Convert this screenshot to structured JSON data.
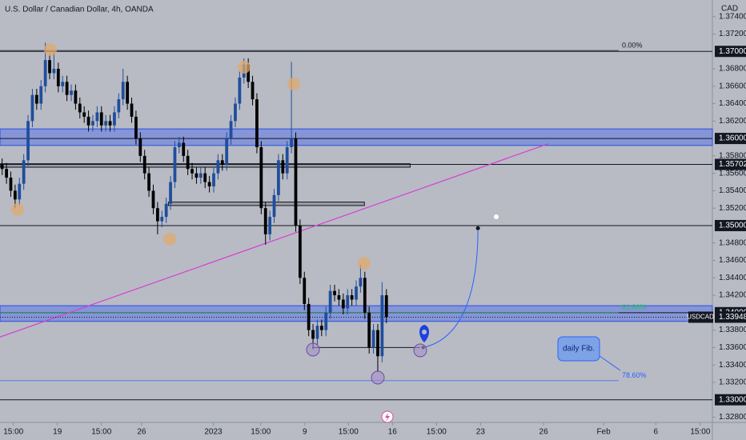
{
  "chart_data": {
    "type": "candlestick",
    "title": "U.S. Dollar / Canadian Dollar, 4h, OANDA",
    "y_axis_label": "CAD",
    "symbol": "USDCAD",
    "up_color": "#1f4e9c",
    "down_color": "#000000",
    "open": [
      1.357,
      1.3565,
      1.3555,
      1.354,
      1.353,
      1.3548,
      1.3575,
      1.362,
      1.365,
      1.364,
      1.366,
      1.369,
      1.3675,
      1.368,
      1.366,
      1.3665,
      1.365,
      1.3655,
      1.364,
      1.363,
      1.3625,
      1.3615,
      1.362,
      1.363,
      1.3615,
      1.362,
      1.3615,
      1.363,
      1.3645,
      1.3665,
      1.364,
      1.3625,
      1.36,
      1.358,
      1.356,
      1.354,
      1.352,
      1.3505,
      1.351,
      1.3525,
      1.355,
      1.359,
      1.3595,
      1.358,
      1.3565,
      1.356,
      1.3555,
      1.356,
      1.355,
      1.3545,
      1.356,
      1.3575,
      1.357,
      1.36,
      1.362,
      1.364,
      1.367,
      1.3685,
      1.3665,
      1.3645,
      1.359,
      1.352,
      1.349,
      1.351,
      1.3535,
      1.3575,
      1.356,
      1.359,
      1.36,
      1.35,
      1.344,
      1.341,
      1.338,
      1.337,
      1.3385,
      1.338,
      1.34,
      1.3425,
      1.342,
      1.3415,
      1.3405,
      1.342,
      1.3415,
      1.343,
      1.344,
      1.34,
      1.336,
      1.338,
      1.335,
      1.342
    ],
    "high": [
      1.3577,
      1.3572,
      1.3562,
      1.3547,
      1.3555,
      1.3582,
      1.3627,
      1.3657,
      1.3657,
      1.3667,
      1.371,
      1.3697,
      1.37,
      1.3687,
      1.3672,
      1.3672,
      1.3662,
      1.3662,
      1.3647,
      1.3637,
      1.3632,
      1.3627,
      1.3637,
      1.3637,
      1.3627,
      1.3627,
      1.3637,
      1.3652,
      1.368,
      1.3672,
      1.3647,
      1.3632,
      1.3607,
      1.3587,
      1.3567,
      1.3547,
      1.3527,
      1.3517,
      1.3532,
      1.3557,
      1.3597,
      1.3602,
      1.3602,
      1.3587,
      1.3572,
      1.3567,
      1.3567,
      1.3567,
      1.3557,
      1.3567,
      1.3582,
      1.3582,
      1.3607,
      1.3627,
      1.3647,
      1.3677,
      1.3692,
      1.3692,
      1.3672,
      1.3652,
      1.3597,
      1.3527,
      1.3517,
      1.3542,
      1.3582,
      1.3582,
      1.3597,
      1.3688,
      1.3607,
      1.3507,
      1.3447,
      1.3417,
      1.3387,
      1.3392,
      1.3392,
      1.3407,
      1.3432,
      1.3432,
      1.3427,
      1.3422,
      1.3427,
      1.3427,
      1.3437,
      1.3455,
      1.3447,
      1.3407,
      1.3387,
      1.3387,
      1.3435,
      1.3427
    ],
    "low": [
      1.3558,
      1.3548,
      1.3533,
      1.352,
      1.3523,
      1.3541,
      1.3568,
      1.3613,
      1.3633,
      1.3633,
      1.3653,
      1.3668,
      1.3668,
      1.3653,
      1.3653,
      1.3643,
      1.3643,
      1.3633,
      1.3623,
      1.3618,
      1.3608,
      1.3608,
      1.3613,
      1.3608,
      1.3608,
      1.3608,
      1.3608,
      1.3623,
      1.3638,
      1.3633,
      1.3618,
      1.3593,
      1.3573,
      1.3553,
      1.3533,
      1.3513,
      1.349,
      1.3498,
      1.3503,
      1.3518,
      1.3543,
      1.3583,
      1.3573,
      1.3558,
      1.3553,
      1.3548,
      1.3548,
      1.3543,
      1.3538,
      1.3538,
      1.3553,
      1.3563,
      1.3563,
      1.3593,
      1.3613,
      1.3633,
      1.3663,
      1.3658,
      1.3638,
      1.3583,
      1.3513,
      1.3478,
      1.3483,
      1.3503,
      1.3528,
      1.3553,
      1.3553,
      1.3583,
      1.3493,
      1.3433,
      1.3403,
      1.3373,
      1.3358,
      1.3363,
      1.3373,
      1.3373,
      1.3393,
      1.3413,
      1.3408,
      1.3398,
      1.3398,
      1.3408,
      1.3408,
      1.3423,
      1.3393,
      1.3353,
      1.3353,
      1.3332,
      1.3343,
      1.3388
    ],
    "close": [
      1.3565,
      1.3555,
      1.354,
      1.353,
      1.3548,
      1.3575,
      1.362,
      1.365,
      1.364,
      1.366,
      1.369,
      1.3675,
      1.368,
      1.366,
      1.3665,
      1.365,
      1.3655,
      1.364,
      1.363,
      1.3625,
      1.3615,
      1.362,
      1.363,
      1.3615,
      1.362,
      1.3615,
      1.363,
      1.3645,
      1.3665,
      1.364,
      1.3625,
      1.36,
      1.358,
      1.356,
      1.354,
      1.352,
      1.3505,
      1.351,
      1.3525,
      1.355,
      1.359,
      1.3595,
      1.358,
      1.3565,
      1.356,
      1.3555,
      1.356,
      1.355,
      1.3545,
      1.356,
      1.3575,
      1.357,
      1.36,
      1.362,
      1.364,
      1.367,
      1.3685,
      1.3665,
      1.3645,
      1.359,
      1.352,
      1.349,
      1.351,
      1.3535,
      1.3575,
      1.356,
      1.359,
      1.36,
      1.35,
      1.344,
      1.341,
      1.338,
      1.337,
      1.3385,
      1.338,
      1.34,
      1.3425,
      1.342,
      1.3415,
      1.3405,
      1.342,
      1.3415,
      1.343,
      1.344,
      1.34,
      1.336,
      1.338,
      1.335,
      1.342,
      1.3395
    ],
    "xlim": [
      0,
      165
    ],
    "xticks": [
      {
        "value": 3.1,
        "label": "15:00"
      },
      {
        "value": 13.3,
        "label": "19"
      },
      {
        "value": 23.5,
        "label": "15:00"
      },
      {
        "value": 32.8,
        "label": "26"
      },
      {
        "value": 49.4,
        "label": "2023"
      },
      {
        "value": 60.4,
        "label": "15:00"
      },
      {
        "value": 70.6,
        "label": "9"
      },
      {
        "value": 80.7,
        "label": "15:00"
      },
      {
        "value": 90.9,
        "label": "16"
      },
      {
        "value": 101.1,
        "label": "15:00"
      },
      {
        "value": 111.3,
        "label": "23"
      },
      {
        "value": 125.9,
        "label": "26"
      },
      {
        "value": 139.8,
        "label": "Feb"
      },
      {
        "value": 151.9,
        "label": "6"
      },
      {
        "value": 162.2,
        "label": "15:00"
      }
    ],
    "ylim": [
      1.3274,
      1.3759
    ],
    "yticks": [
      {
        "value": 1.374,
        "label": "1.37400"
      },
      {
        "value": 1.372,
        "label": "1.37200"
      },
      {
        "value": 1.368,
        "label": "1.36800"
      },
      {
        "value": 1.366,
        "label": "1.36600"
      },
      {
        "value": 1.364,
        "label": "1.36400"
      },
      {
        "value": 1.362,
        "label": "1.36200"
      },
      {
        "value": 1.358,
        "label": "1.35800"
      },
      {
        "value": 1.356,
        "label": "1.35600"
      },
      {
        "value": 1.354,
        "label": "1.35400"
      },
      {
        "value": 1.352,
        "label": "1.35200"
      },
      {
        "value": 1.348,
        "label": "1.34800"
      },
      {
        "value": 1.346,
        "label": "1.34600"
      },
      {
        "value": 1.344,
        "label": "1.34400"
      },
      {
        "value": 1.342,
        "label": "1.34200"
      },
      {
        "value": 1.338,
        "label": "1.33800"
      },
      {
        "value": 1.336,
        "label": "1.33600"
      },
      {
        "value": 1.334,
        "label": "1.33400"
      },
      {
        "value": 1.332,
        "label": "1.33200"
      },
      {
        "value": 1.328,
        "label": "1.32800"
      }
    ],
    "levels": [
      {
        "value": 1.37,
        "label": "1.37000"
      },
      {
        "value": 1.36,
        "label": "1.36000"
      },
      {
        "value": 1.35702,
        "label": "1.35702"
      },
      {
        "value": 1.35,
        "label": "1.35000"
      },
      {
        "value": 1.34,
        "label": "1.34000"
      },
      {
        "value": 1.33,
        "label": "1.33000"
      }
    ],
    "last": {
      "value": 1.33948,
      "label": "1.33948"
    },
    "zones": [
      {
        "from": 1.3592,
        "to": 1.3611
      },
      {
        "from": 1.339,
        "to": 1.3408
      }
    ],
    "boxes": [
      {
        "from": 1.3567,
        "to": 1.3571,
        "x": [
          0,
          95
        ]
      },
      {
        "from": 1.3523,
        "to": 1.3527,
        "x": [
          39,
          84.4
        ]
      }
    ],
    "range_line": {
      "value": 1.336,
      "x": [
        72.3,
        97.3
      ]
    },
    "trendline": {
      "x": [
        0,
        127
      ],
      "y": [
        1.3372,
        1.3594
      ]
    },
    "fibs": [
      {
        "value": 1.3701,
        "label": "0.00%",
        "color": "#131722",
        "x": [
          0,
          143.3
        ]
      },
      {
        "value": 1.34,
        "label": "61.80%",
        "color": "#22c55e",
        "x": [
          0,
          143.3
        ]
      },
      {
        "value": 1.3322,
        "label": "78.60%",
        "color": "#2962ff",
        "x": [
          0,
          143.3
        ]
      }
    ],
    "arrow": {
      "x": [
        98,
        110.7
      ],
      "y": [
        1.336,
        1.3497
      ]
    },
    "note": "daily Fib."
  }
}
